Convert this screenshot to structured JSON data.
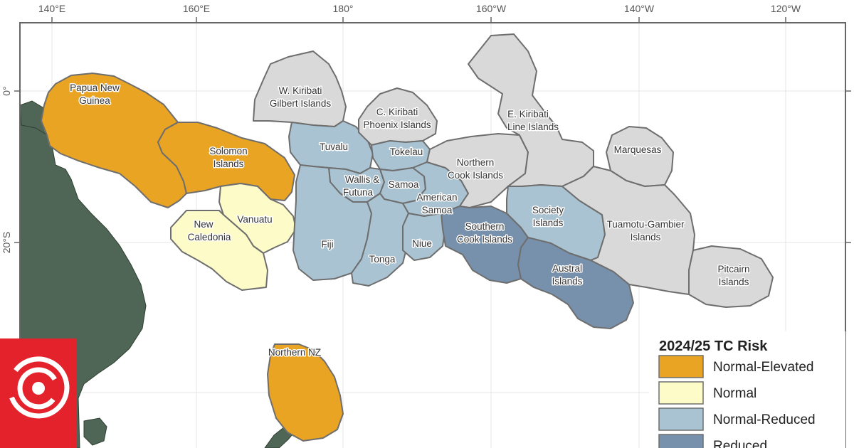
{
  "colors": {
    "normal_elevated": "#e9a424",
    "normal": "#fdfbc7",
    "normal_reduced": "#a9c3d3",
    "reduced": "#7790ab",
    "no_risk_grey": "#d9d9d9",
    "land": "#4f6555",
    "logo_red": "#e4222b"
  },
  "axes": {
    "longitude_ticks": [
      "140°E",
      "160°E",
      "180°",
      "160°W",
      "140°W",
      "120°W"
    ],
    "latitude_ticks": [
      "0°",
      "20°S"
    ]
  },
  "regions": [
    {
      "id": "png",
      "label": [
        "Papua New",
        "Guinea"
      ],
      "risk": "normal_elevated"
    },
    {
      "id": "solomon",
      "label": [
        "Solomon",
        "Islands"
      ],
      "risk": "normal_elevated"
    },
    {
      "id": "vanuatu",
      "label": [
        "Vanuatu"
      ],
      "risk": "normal"
    },
    {
      "id": "new-caledonia",
      "label": [
        "New",
        "Caledonia"
      ],
      "risk": "normal"
    },
    {
      "id": "w-kiribati",
      "label": [
        "W. Kiribati",
        "Gilbert Islands"
      ],
      "risk": "none"
    },
    {
      "id": "tuvalu",
      "label": [
        "Tuvalu"
      ],
      "risk": "normal_reduced"
    },
    {
      "id": "c-kiribati",
      "label": [
        "C. Kiribati",
        "Phoenix Islands"
      ],
      "risk": "none"
    },
    {
      "id": "tokelau",
      "label": [
        "Tokelau"
      ],
      "risk": "normal_reduced"
    },
    {
      "id": "wallis-futuna",
      "label": [
        "Wallis &",
        "Futuna"
      ],
      "risk": "normal_reduced"
    },
    {
      "id": "samoa",
      "label": [
        "Samoa"
      ],
      "risk": "normal_reduced"
    },
    {
      "id": "american-samoa",
      "label": [
        "American",
        "Samoa"
      ],
      "risk": "normal_reduced"
    },
    {
      "id": "fiji",
      "label": [
        "Fiji"
      ],
      "risk": "normal_reduced"
    },
    {
      "id": "tonga",
      "label": [
        "Tonga"
      ],
      "risk": "normal_reduced"
    },
    {
      "id": "niue",
      "label": [
        "Niue"
      ],
      "risk": "normal_reduced"
    },
    {
      "id": "northern-cook",
      "label": [
        "Northern",
        "Cook Islands"
      ],
      "risk": "none"
    },
    {
      "id": "southern-cook",
      "label": [
        "Southern",
        "Cook Islands"
      ],
      "risk": "reduced"
    },
    {
      "id": "e-kiribati",
      "label": [
        "E. Kiribati",
        "Line Islands"
      ],
      "risk": "none"
    },
    {
      "id": "society",
      "label": [
        "Society",
        "Islands"
      ],
      "risk": "normal_reduced"
    },
    {
      "id": "austral",
      "label": [
        "Austral",
        "Islands"
      ],
      "risk": "reduced"
    },
    {
      "id": "marquesas",
      "label": [
        "Marquesas"
      ],
      "risk": "none"
    },
    {
      "id": "tuamotu-gambier",
      "label": [
        "Tuamotu-Gambier",
        "Islands"
      ],
      "risk": "none"
    },
    {
      "id": "pitcairn",
      "label": [
        "Pitcairn",
        "Islands"
      ],
      "risk": "none"
    },
    {
      "id": "northern-nz",
      "label": [
        "Northern NZ"
      ],
      "risk": "normal_elevated"
    }
  ],
  "legend": {
    "title": "2024/25 TC Risk",
    "items": [
      {
        "label": "Normal-Elevated",
        "color_key": "normal_elevated"
      },
      {
        "label": "Normal",
        "color_key": "normal"
      },
      {
        "label": "Normal-Reduced",
        "color_key": "normal_reduced"
      },
      {
        "label": "Reduced",
        "color_key": "reduced"
      }
    ]
  },
  "logo": {
    "icon": "rnz-logo-icon"
  }
}
